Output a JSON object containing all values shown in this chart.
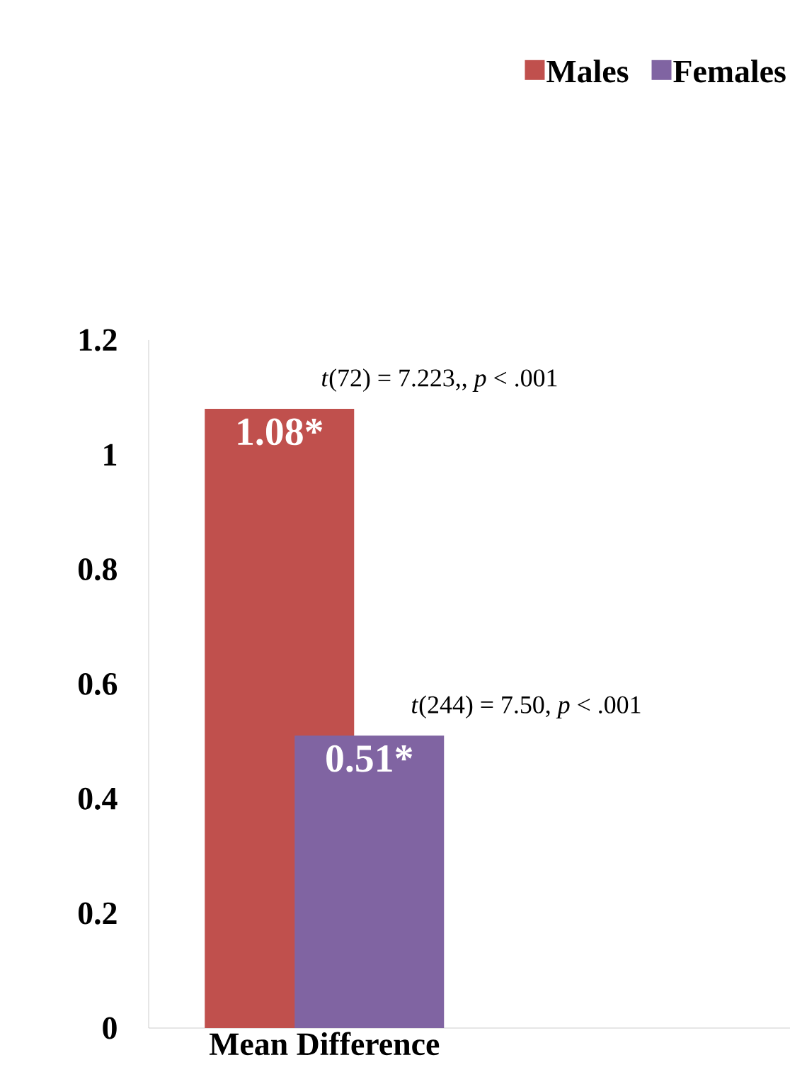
{
  "chart_data": {
    "type": "bar",
    "categories": [
      "Mean Difference"
    ],
    "series": [
      {
        "name": "Males",
        "color": "#c0504d",
        "values": [
          1.08
        ],
        "value_labels": [
          "1.08*"
        ]
      },
      {
        "name": "Females",
        "color": "#8064a2",
        "values": [
          0.51
        ],
        "value_labels": [
          "0.51*"
        ]
      }
    ],
    "annotations": [
      "*t*(72) = 7.223,, *p* < .001",
      "*t*(244) = 7.50, *p* < .001"
    ],
    "ylim": [
      0,
      1.2
    ],
    "yticks": [
      0,
      0.2,
      0.4,
      0.6,
      0.8,
      1,
      1.2
    ],
    "legend": "top right",
    "grid": false
  }
}
